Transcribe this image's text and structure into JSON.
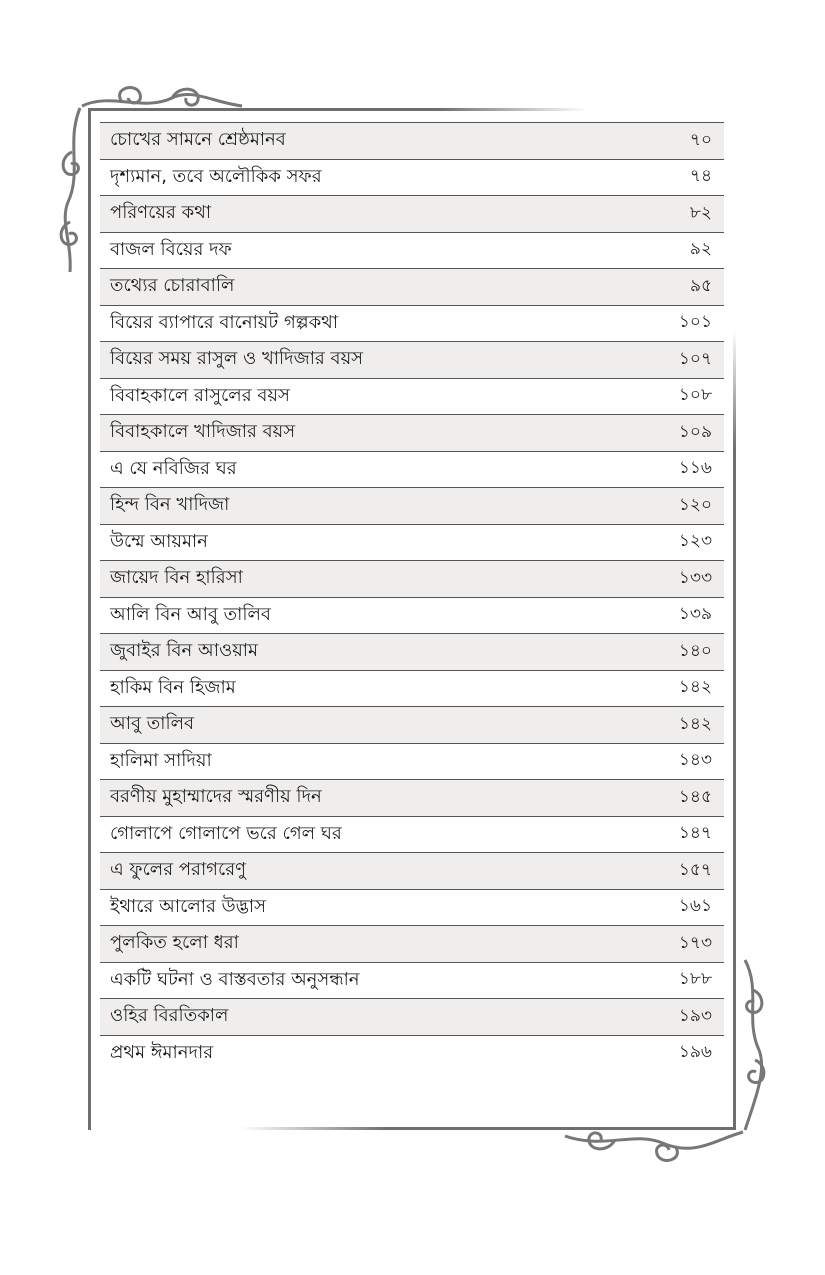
{
  "toc": [
    {
      "title": "চোখের সামনে শ্রেষ্ঠমানব",
      "page": "৭০"
    },
    {
      "title": "দৃশ্যমান, তবে অলৌকিক সফর",
      "page": "৭৪"
    },
    {
      "title": "পরিণয়ের কথা",
      "page": "৮২"
    },
    {
      "title": "বাজল বিয়ের দফ",
      "page": "৯২"
    },
    {
      "title": "তথ্যের চোরাবালি",
      "page": "৯৫"
    },
    {
      "title": "বিয়ের ব্যাপারে বানোয়ট গল্পকথা",
      "page": "১০১"
    },
    {
      "title": "বিয়ের সময় রাসুল ও খাদিজার বয়স",
      "page": "১০৭"
    },
    {
      "title": "বিবাহকালে রাসুলের বয়স",
      "page": "১০৮"
    },
    {
      "title": "বিবাহকালে খাদিজার বয়স",
      "page": "১০৯"
    },
    {
      "title": "এ যে নবিজির ঘর",
      "page": "১১৬"
    },
    {
      "title": "হিন্দ বিন খাদিজা",
      "page": "১২০"
    },
    {
      "title": "উম্মে আয়মান",
      "page": "১২৩"
    },
    {
      "title": "জায়েদ বিন হারিসা",
      "page": "১৩৩"
    },
    {
      "title": "আলি বিন আবু তালিব",
      "page": "১৩৯"
    },
    {
      "title": "জুবাইর বিন আওয়াম",
      "page": "১৪০"
    },
    {
      "title": "হাকিম বিন হিজাম",
      "page": "১৪২"
    },
    {
      "title": "আবু তালিব",
      "page": "১৪২"
    },
    {
      "title": "হালিমা সাদিয়া",
      "page": "১৪৩"
    },
    {
      "title": "বরণীয় মুহাম্মাদের স্মরণীয় দিন",
      "page": "১৪৫"
    },
    {
      "title": "গোলাপে গোলাপে ভরে গেল ঘর",
      "page": "১৪৭"
    },
    {
      "title": "এ ফুলের পরাগরেণু",
      "page": "১৫৭"
    },
    {
      "title": "ইথারে আলোর উদ্ভাস",
      "page": "১৬১"
    },
    {
      "title": "পুলকিত হলো ধরা",
      "page": "১৭৩"
    },
    {
      "title": "একটি ঘটনা ও বাস্তবতার অনুসন্ধান",
      "page": "১৮৮"
    },
    {
      "title": "ওহির বিরতিকাল",
      "page": "১৯৩"
    },
    {
      "title": "প্রথম ঈমানদার",
      "page": "১৯৬"
    }
  ],
  "colors": {
    "frame": "#6e6e6e",
    "row_shade": "#efeeed",
    "rule": "#555555"
  }
}
